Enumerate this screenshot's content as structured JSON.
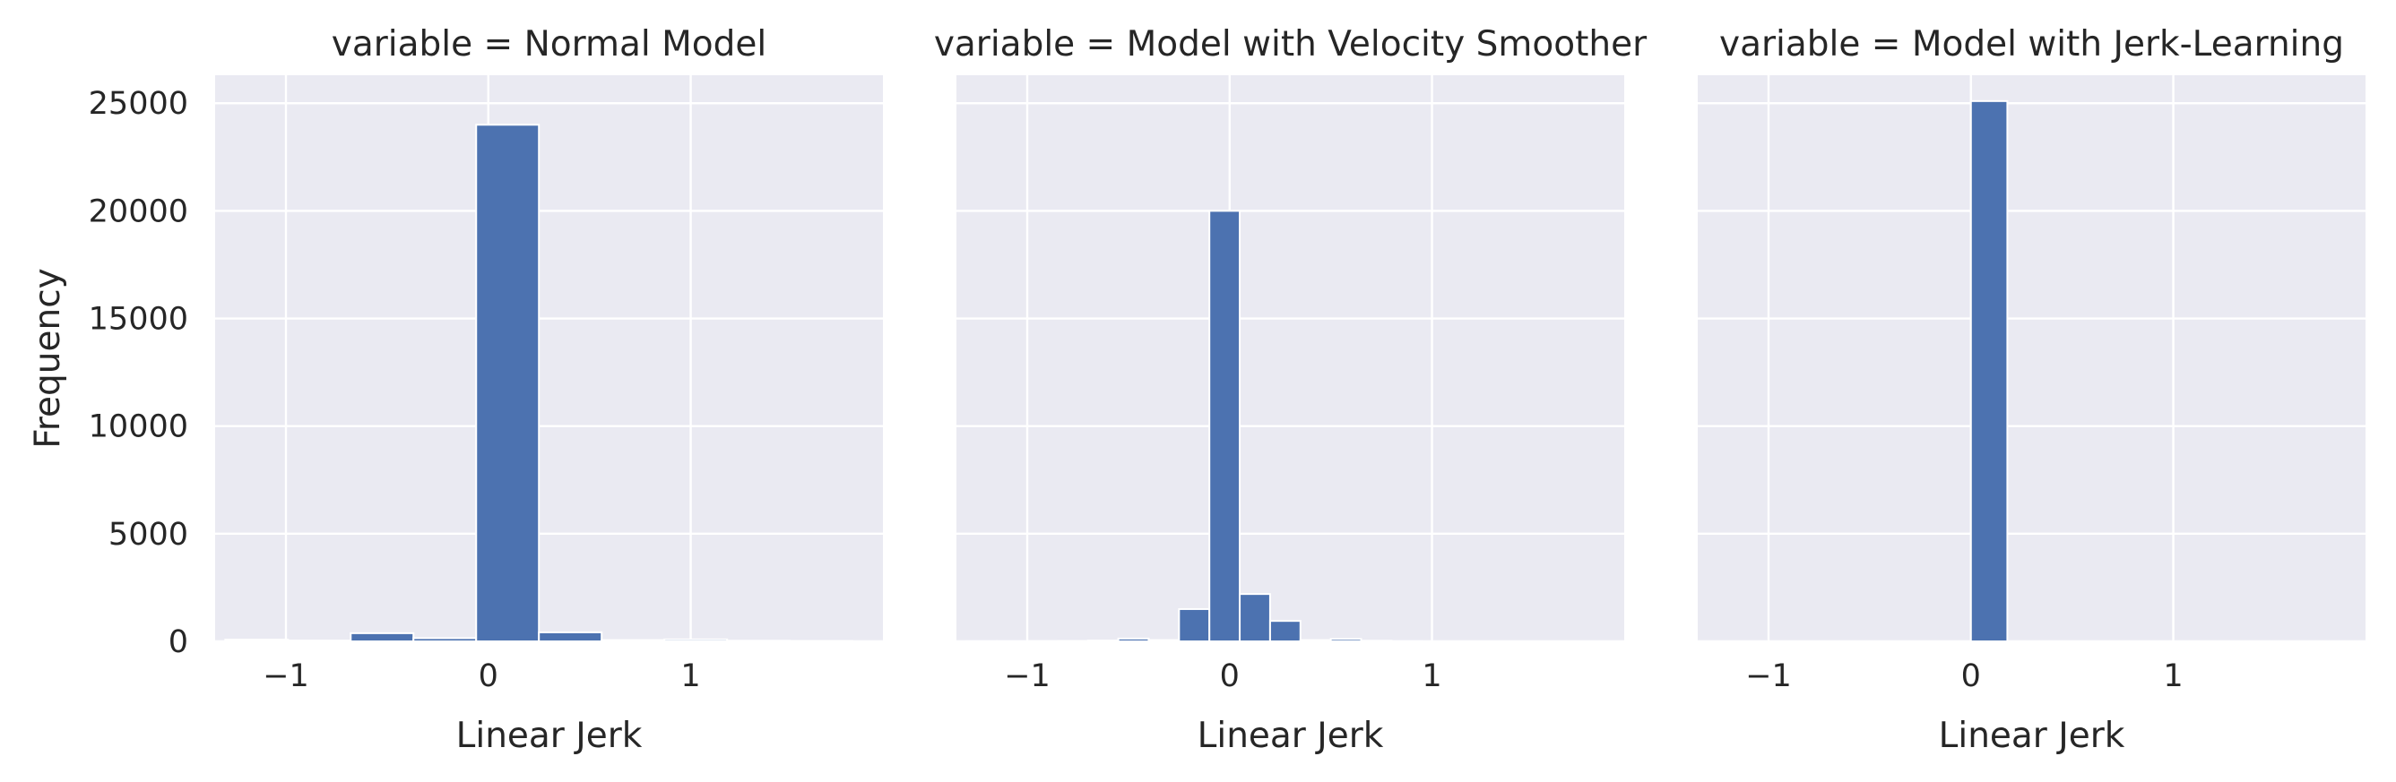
{
  "chart_data": [
    {
      "type": "bar",
      "title": "variable = Normal Model",
      "xlabel": "Linear Jerk",
      "ylabel": "Frequency",
      "xlim": [
        -1.35,
        1.95
      ],
      "ylim": [
        0,
        26300
      ],
      "xticks": [
        -1,
        0,
        1
      ],
      "xtick_labels": [
        "−1",
        "0",
        "1"
      ],
      "yticks": [
        0,
        5000,
        10000,
        15000,
        20000,
        25000
      ],
      "ytick_labels": [
        "0",
        "5000",
        "10000",
        "15000",
        "20000",
        "25000"
      ],
      "bins": [
        {
          "x0": -1.3,
          "x1": -0.99,
          "count": 80
        },
        {
          "x0": -0.99,
          "x1": -0.68,
          "count": 40
        },
        {
          "x0": -0.68,
          "x1": -0.37,
          "count": 380
        },
        {
          "x0": -0.37,
          "x1": -0.06,
          "count": 150
        },
        {
          "x0": -0.06,
          "x1": 0.25,
          "count": 24000
        },
        {
          "x0": 0.25,
          "x1": 0.56,
          "count": 420
        },
        {
          "x0": 0.56,
          "x1": 0.87,
          "count": 60
        },
        {
          "x0": 0.87,
          "x1": 1.18,
          "count": 90
        },
        {
          "x0": 1.18,
          "x1": 1.49,
          "count": 30
        },
        {
          "x0": 1.49,
          "x1": 1.8,
          "count": 20
        }
      ],
      "grid": true
    },
    {
      "type": "bar",
      "title": "variable = Model with Velocity Smoother",
      "xlabel": "Linear Jerk",
      "ylabel": "",
      "xlim": [
        -1.35,
        1.95
      ],
      "ylim": [
        0,
        26300
      ],
      "xticks": [
        -1,
        0,
        1
      ],
      "xtick_labels": [
        "−1",
        "0",
        "1"
      ],
      "yticks": [
        0,
        5000,
        10000,
        15000,
        20000,
        25000
      ],
      "ytick_labels": [],
      "bins": [
        {
          "x0": -1.3,
          "x1": -1.15,
          "count": 10
        },
        {
          "x0": -1.15,
          "x1": -1.0,
          "count": 10
        },
        {
          "x0": -1.0,
          "x1": -0.85,
          "count": 15
        },
        {
          "x0": -0.85,
          "x1": -0.7,
          "count": 20
        },
        {
          "x0": -0.7,
          "x1": -0.55,
          "count": 40
        },
        {
          "x0": -0.55,
          "x1": -0.4,
          "count": 130
        },
        {
          "x0": -0.4,
          "x1": -0.25,
          "count": 60
        },
        {
          "x0": -0.25,
          "x1": -0.1,
          "count": 1500
        },
        {
          "x0": -0.1,
          "x1": 0.05,
          "count": 20000
        },
        {
          "x0": 0.05,
          "x1": 0.2,
          "count": 2200
        },
        {
          "x0": 0.2,
          "x1": 0.35,
          "count": 950
        },
        {
          "x0": 0.35,
          "x1": 0.5,
          "count": 60
        },
        {
          "x0": 0.5,
          "x1": 0.65,
          "count": 110
        },
        {
          "x0": 0.65,
          "x1": 0.8,
          "count": 30
        },
        {
          "x0": 0.8,
          "x1": 0.95,
          "count": 10
        }
      ],
      "grid": true
    },
    {
      "type": "bar",
      "title": "variable = Model with Jerk-Learning",
      "xlabel": "Linear Jerk",
      "ylabel": "",
      "xlim": [
        -1.35,
        1.95
      ],
      "ylim": [
        0,
        26300
      ],
      "xticks": [
        -1,
        0,
        1
      ],
      "xtick_labels": [
        "−1",
        "0",
        "1"
      ],
      "yticks": [
        0,
        5000,
        10000,
        15000,
        20000,
        25000
      ],
      "ytick_labels": [],
      "bins": [
        {
          "x0": 0.0,
          "x1": 0.18,
          "count": 25100
        }
      ],
      "grid": true
    }
  ]
}
